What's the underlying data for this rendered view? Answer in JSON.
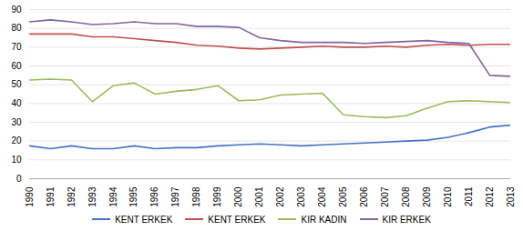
{
  "chart_data": {
    "type": "line",
    "x": [
      1990,
      1991,
      1992,
      1993,
      1994,
      1995,
      1996,
      1997,
      1998,
      1999,
      2000,
      2001,
      2002,
      2003,
      2004,
      2005,
      2006,
      2007,
      2008,
      2009,
      2010,
      2011,
      2012,
      2013
    ],
    "series": [
      {
        "name": "KENT ERKEK",
        "color": "#4472C4",
        "values": [
          17.5,
          16.0,
          17.5,
          16.0,
          16.0,
          17.5,
          16.0,
          16.5,
          16.5,
          17.5,
          18.0,
          18.5,
          18.0,
          17.5,
          18.0,
          18.5,
          19.0,
          19.5,
          20.0,
          20.5,
          22.0,
          24.5,
          27.5,
          28.5
        ]
      },
      {
        "name": "KENT ERKEK",
        "color": "#C0504D",
        "values": [
          77.0,
          77.0,
          77.0,
          75.5,
          75.5,
          74.5,
          73.5,
          72.5,
          71.0,
          70.5,
          69.5,
          69.0,
          69.5,
          70.0,
          70.5,
          70.0,
          70.0,
          70.5,
          70.0,
          71.0,
          71.5,
          71.0,
          71.5,
          71.5
        ]
      },
      {
        "name": "KIR KADIN",
        "color": "#9BBB59",
        "values": [
          52.5,
          53.0,
          52.5,
          41.0,
          49.5,
          51.0,
          45.0,
          46.5,
          47.5,
          49.5,
          41.5,
          42.0,
          44.5,
          45.0,
          45.5,
          34.0,
          33.0,
          32.5,
          33.5,
          37.5,
          41.0,
          41.5,
          41.0,
          40.5
        ]
      },
      {
        "name": "KIR ERKEK",
        "color": "#8064A2",
        "values": [
          83.5,
          84.5,
          83.5,
          82.0,
          82.5,
          83.5,
          82.5,
          82.5,
          81.0,
          81.0,
          80.5,
          75.0,
          73.5,
          72.5,
          72.5,
          72.5,
          72.0,
          72.5,
          73.0,
          73.5,
          72.5,
          72.0,
          55.0,
          54.5
        ]
      }
    ],
    "xlim": [
      1990,
      2013
    ],
    "xticks": [
      1990,
      1991,
      1992,
      1993,
      1994,
      1995,
      1996,
      1997,
      1998,
      1999,
      2000,
      2001,
      2002,
      2003,
      2004,
      2005,
      2006,
      2007,
      2008,
      2009,
      2010,
      2011,
      2012,
      2013
    ],
    "ylim": [
      0,
      90
    ],
    "yticks": [
      0,
      10,
      20,
      30,
      40,
      50,
      60,
      70,
      80,
      90
    ],
    "grid": true,
    "legend": "bottom"
  }
}
